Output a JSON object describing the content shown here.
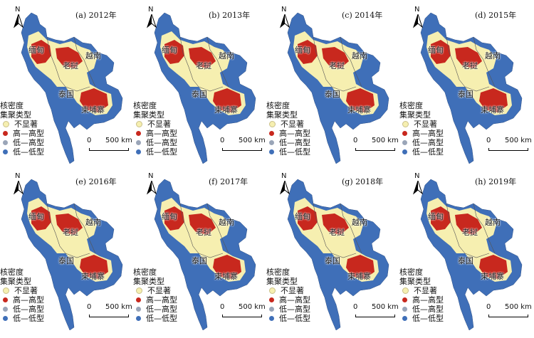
{
  "colors": {
    "not_significant": "#f6efb0",
    "high_high": "#c8281e",
    "low_high": "#9aa5b8",
    "low_low": "#3f6fb8"
  },
  "legend": {
    "title_line1": "核密度",
    "title_line2": "集聚类型",
    "items": [
      {
        "label": "不显著",
        "color_key": "not_significant"
      },
      {
        "label": "高—高型",
        "color_key": "high_high"
      },
      {
        "label": "低—高型",
        "color_key": "low_high"
      },
      {
        "label": "低—低型",
        "color_key": "low_low"
      }
    ]
  },
  "north_label": "N",
  "scale_bar": {
    "zero": "0",
    "distance": "500 km"
  },
  "countries": {
    "myanmar": "缅甸",
    "vietnam": "越南",
    "laos": "老挝",
    "thailand": "泰国",
    "cambodia": "柬埔寨"
  },
  "panels": [
    {
      "title": "(a) 2012年"
    },
    {
      "title": "(b) 2013年"
    },
    {
      "title": "(c) 2014年"
    },
    {
      "title": "(d) 2015年"
    },
    {
      "title": "(e) 2016年"
    },
    {
      "title": "(f) 2017年"
    },
    {
      "title": "(g) 2018年"
    },
    {
      "title": "(h) 2019年"
    }
  ]
}
